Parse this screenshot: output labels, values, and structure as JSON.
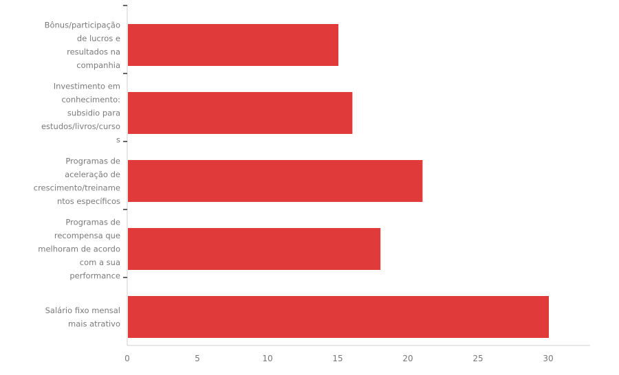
{
  "chart_data": {
    "type": "bar",
    "orientation": "horizontal",
    "categories": [
      [
        "Bônus/participação",
        "de lucros e",
        "resultados na",
        "companhia"
      ],
      [
        "Investimento em",
        "conhecimento:",
        "subsidio para",
        "estudos/livros/curso",
        "s"
      ],
      [
        "Programas de",
        "aceleração de",
        "crescimento/treiname",
        "ntos específicos"
      ],
      [
        "Programas de",
        "recompensa que",
        "melhoram de acordo",
        "com a sua",
        "performance"
      ],
      [
        "Salário fixo mensal",
        "mais atrativo"
      ]
    ],
    "values": [
      15,
      16,
      21,
      18,
      30
    ],
    "xlim": [
      0,
      33
    ],
    "xticks": [
      "0",
      "5",
      "10",
      "15",
      "20",
      "25",
      "30"
    ],
    "title": "",
    "xlabel": "",
    "ylabel": "",
    "grid": false,
    "bar_color": "#e03a3a",
    "axis_color": "#cfcfcf"
  }
}
